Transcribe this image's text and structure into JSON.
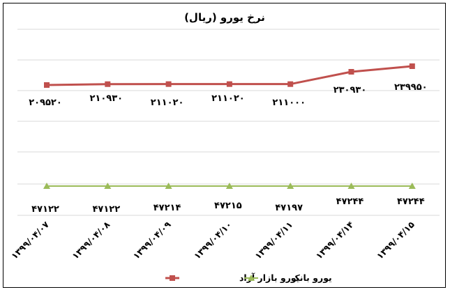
{
  "chart_data": {
    "type": "line",
    "title": "نرخ یورو (ریال)",
    "categories": [
      "۱۳۹۹/۰۴/۰۷",
      "۱۳۹۹/۰۴/۰۸",
      "۱۳۹۹/۰۴/۰۹",
      "۱۳۹۹/۰۴/۱۰",
      "۱۳۹۹/۰۴/۱۱",
      "۱۳۹۹/۰۴/۱۴",
      "۱۳۹۹/۰۴/۱۵"
    ],
    "series": [
      {
        "name": "یورو بازار آزاد",
        "color": "#c0504d",
        "marker": "square",
        "values": [
          209520,
          210930,
          211020,
          211020,
          211000,
          230930,
          239950
        ],
        "labels": [
          "۲۰۹۵۲۰",
          "۲۱۰۹۳۰",
          "۲۱۱۰۲۰",
          "۲۱۱۰۲۰",
          "۲۱۱۰۰۰",
          "۲۳۰۹۳۰",
          "۲۳۹۹۵۰"
        ]
      },
      {
        "name": "یورو بانک",
        "color": "#9bbb59",
        "marker": "triangle",
        "values": [
          47122,
          47122,
          47214,
          47215,
          47197,
          47244,
          47244
        ],
        "labels": [
          "۴۷۱۲۲",
          "۴۷۱۲۲",
          "۴۷۲۱۴",
          "۴۷۲۱۵",
          "۴۷۱۹۷",
          "۴۷۲۴۴",
          "۴۷۲۴۴"
        ]
      }
    ],
    "grid": true,
    "legend": "bottom"
  }
}
